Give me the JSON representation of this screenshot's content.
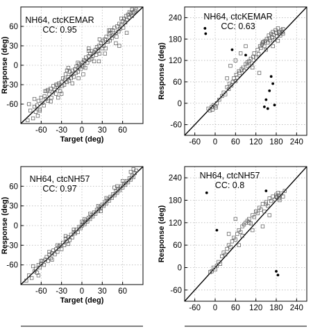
{
  "chart_data": [
    {
      "type": "scatter",
      "panel": "top-left",
      "annotation_line1": "NH64, ctcKEMAR",
      "annotation_line2": "CC: 0.95",
      "xlabel": "Target (deg)",
      "ylabel": "Response (deg)",
      "xlim": [
        -90,
        90
      ],
      "ylim": [
        -90,
        90
      ],
      "xticks": [
        -60,
        -30,
        0,
        30,
        60
      ],
      "yticks": [
        -60,
        -30,
        0,
        30,
        60
      ],
      "x": [
        -80,
        -76,
        -72,
        -70,
        -68,
        -66,
        -64,
        -62,
        -60,
        -58,
        -56,
        -55,
        -53,
        -52,
        -50,
        -48,
        -46,
        -45,
        -43,
        -42,
        -40,
        -38,
        -36,
        -35,
        -34,
        -32,
        -30,
        -29,
        -28,
        -26,
        -25,
        -24,
        -22,
        -20,
        -19,
        -18,
        -16,
        -15,
        -14,
        -12,
        -10,
        -9,
        -8,
        -6,
        -5,
        -4,
        -2,
        0,
        1,
        2,
        3,
        4,
        5,
        6,
        8,
        10,
        11,
        12,
        14,
        15,
        16,
        18,
        20,
        21,
        22,
        24,
        25,
        26,
        28,
        30,
        31,
        32,
        34,
        35,
        36,
        38,
        40,
        41,
        42,
        44,
        45,
        46,
        48,
        50,
        51,
        52,
        54,
        55,
        56,
        58,
        60,
        61,
        62,
        64,
        65,
        66,
        68,
        70,
        72,
        74,
        76,
        78,
        80,
        -78,
        -70,
        -62,
        -54,
        -46,
        -38,
        -30,
        -22,
        -14,
        -6,
        2,
        10,
        18,
        26,
        34,
        42,
        50,
        58,
        66,
        74,
        -65,
        -50,
        -35,
        -20,
        -5,
        10,
        25,
        40,
        55,
        70
      ],
      "y": [
        -85,
        -70,
        -82,
        -64,
        -72,
        -62,
        -55,
        -68,
        -50,
        -58,
        -62,
        -48,
        -52,
        -40,
        -55,
        -45,
        -36,
        -50,
        -42,
        -32,
        -38,
        -44,
        -30,
        -35,
        -28,
        -40,
        -26,
        -32,
        -20,
        -30,
        -22,
        -14,
        -26,
        -18,
        -24,
        -10,
        -20,
        -14,
        -8,
        -18,
        -6,
        -12,
        -2,
        -10,
        -4,
        2,
        -6,
        0,
        4,
        -2,
        8,
        6,
        -4,
        12,
        4,
        14,
        8,
        18,
        10,
        22,
        14,
        20,
        24,
        16,
        28,
        22,
        30,
        18,
        34,
        26,
        38,
        30,
        40,
        26,
        44,
        36,
        48,
        38,
        50,
        42,
        54,
        46,
        58,
        50,
        44,
        60,
        52,
        64,
        56,
        62,
        68,
        58,
        72,
        66,
        76,
        70,
        78,
        74,
        80,
        76,
        82,
        84,
        86,
        -60,
        -52,
        -70,
        -40,
        -56,
        -30,
        -44,
        -8,
        -28,
        4,
        -14,
        22,
        6,
        40,
        18,
        54,
        34,
        72,
        50,
        86,
        -78,
        -38,
        -50,
        -4,
        -20,
        26,
        6,
        54,
        30,
        82
      ],
      "outliers_x": [],
      "outliers_y": []
    },
    {
      "type": "scatter",
      "panel": "top-right",
      "annotation_line1": "NH64, ctcKEMAR",
      "annotation_line2": "CC: 0.63",
      "xlabel": "",
      "ylabel": "Response (deg)",
      "xlim": [
        -90,
        270
      ],
      "ylim": [
        -90,
        270
      ],
      "xticks": [
        -60,
        0,
        60,
        120,
        180,
        240
      ],
      "yticks": [
        -60,
        0,
        60,
        120,
        180,
        240
      ],
      "x": [
        -20,
        -15,
        -10,
        -5,
        0,
        5,
        -8,
        2,
        12,
        20,
        25,
        30,
        35,
        40,
        42,
        48,
        52,
        55,
        60,
        62,
        65,
        70,
        72,
        78,
        82,
        85,
        90,
        95,
        100,
        105,
        108,
        112,
        115,
        120,
        125,
        128,
        132,
        135,
        138,
        142,
        145,
        148,
        152,
        155,
        158,
        160,
        162,
        165,
        168,
        170,
        172,
        175,
        178,
        180,
        182,
        185,
        188,
        190,
        192,
        195,
        198,
        200,
        35,
        45,
        75,
        95,
        110,
        130,
        150,
        170,
        185,
        200,
        60,
        90,
        140
      ],
      "y": [
        -15,
        -20,
        -10,
        -5,
        -8,
        0,
        -18,
        -12,
        10,
        20,
        30,
        25,
        45,
        40,
        55,
        50,
        60,
        70,
        62,
        80,
        72,
        90,
        85,
        95,
        100,
        92,
        110,
        105,
        118,
        125,
        112,
        130,
        140,
        128,
        150,
        138,
        160,
        155,
        165,
        172,
        160,
        175,
        180,
        170,
        190,
        182,
        176,
        195,
        185,
        200,
        192,
        178,
        205,
        198,
        188,
        210,
        195,
        200,
        190,
        205,
        200,
        208,
        70,
        105,
        140,
        115,
        100,
        85,
        150,
        160,
        175,
        195,
        120,
        160,
        170
      ],
      "outliers_x": [
        -30,
        -28,
        50,
        90,
        145,
        150,
        155,
        165,
        170,
        175,
        160
      ],
      "outliers_y": [
        210,
        195,
        150,
        135,
        -10,
        10,
        -15,
        75,
        55,
        -5,
        35
      ]
    },
    {
      "type": "scatter",
      "panel": "middle-left",
      "annotation_line1": "NH64, ctcNH57",
      "annotation_line2": "CC: 0.97",
      "xlabel": "Target (deg)",
      "ylabel": "Response (deg)",
      "xlim": [
        -90,
        90
      ],
      "ylim": [
        -90,
        90
      ],
      "xticks": [
        -60,
        -30,
        0,
        30,
        60
      ],
      "yticks": [
        -60,
        -30,
        0,
        30,
        60
      ],
      "x": [
        -82,
        -78,
        -74,
        -70,
        -68,
        -66,
        -64,
        -62,
        -60,
        -58,
        -56,
        -54,
        -52,
        -50,
        -48,
        -46,
        -44,
        -42,
        -40,
        -38,
        -36,
        -34,
        -32,
        -30,
        -28,
        -26,
        -24,
        -22,
        -20,
        -18,
        -16,
        -14,
        -12,
        -10,
        -8,
        -6,
        -4,
        -2,
        0,
        2,
        4,
        6,
        8,
        10,
        12,
        14,
        16,
        18,
        20,
        22,
        24,
        26,
        28,
        30,
        32,
        34,
        36,
        38,
        40,
        42,
        44,
        46,
        48,
        50,
        52,
        54,
        56,
        58,
        60,
        62,
        64,
        66,
        68,
        70,
        72,
        74,
        76,
        78,
        80,
        -72,
        -60,
        -48,
        -36,
        -24,
        -12,
        0,
        12,
        24,
        36,
        48,
        60,
        72,
        -64,
        -44,
        -20,
        4,
        28,
        52,
        76
      ],
      "y": [
        -84,
        -76,
        -80,
        -70,
        -66,
        -72,
        -60,
        -64,
        -58,
        -54,
        -60,
        -52,
        -48,
        -54,
        -44,
        -50,
        -42,
        -38,
        -44,
        -36,
        -40,
        -32,
        -30,
        -36,
        -26,
        -30,
        -20,
        -24,
        -18,
        -22,
        -14,
        -18,
        -10,
        -12,
        -6,
        -10,
        -2,
        -4,
        0,
        4,
        2,
        8,
        6,
        12,
        10,
        16,
        14,
        20,
        18,
        24,
        22,
        28,
        26,
        32,
        30,
        36,
        34,
        40,
        38,
        44,
        42,
        48,
        46,
        52,
        50,
        56,
        54,
        60,
        58,
        64,
        62,
        68,
        66,
        72,
        70,
        76,
        74,
        80,
        84,
        -62,
        -54,
        -40,
        -30,
        -16,
        -6,
        6,
        18,
        30,
        42,
        58,
        68,
        82,
        -76,
        -52,
        -28,
        10,
        22,
        60,
        86
      ],
      "outliers_x": [],
      "outliers_y": []
    },
    {
      "type": "scatter",
      "panel": "middle-right",
      "annotation_line1": "NH64, ctcNH57",
      "annotation_line2": "CC: 0.8",
      "xlabel": "",
      "ylabel": "Response (deg)",
      "xlim": [
        -90,
        270
      ],
      "ylim": [
        -90,
        270
      ],
      "xticks": [
        -60,
        0,
        60,
        120,
        180,
        240
      ],
      "yticks": [
        -60,
        0,
        60,
        120,
        180,
        240
      ],
      "x": [
        -10,
        -5,
        0,
        5,
        -15,
        10,
        15,
        20,
        25,
        30,
        35,
        40,
        45,
        50,
        55,
        60,
        65,
        70,
        75,
        80,
        85,
        90,
        95,
        100,
        105,
        110,
        115,
        120,
        125,
        130,
        135,
        140,
        145,
        150,
        155,
        160,
        165,
        170,
        175,
        180,
        182,
        185,
        188,
        190,
        195,
        200,
        205,
        40,
        60,
        80,
        100,
        120,
        140,
        160,
        180,
        70,
        110,
        150,
        190
      ],
      "y": [
        -10,
        0,
        -5,
        5,
        -12,
        15,
        10,
        30,
        40,
        35,
        50,
        60,
        55,
        70,
        80,
        75,
        90,
        100,
        95,
        110,
        115,
        120,
        125,
        130,
        118,
        140,
        135,
        150,
        145,
        160,
        155,
        170,
        150,
        175,
        165,
        185,
        178,
        190,
        182,
        195,
        188,
        200,
        185,
        192,
        198,
        190,
        205,
        90,
        130,
        85,
        120,
        150,
        110,
        140,
        190,
        60,
        100,
        170,
        180
      ],
      "outliers_x": [
        -25,
        5,
        150,
        180,
        185
      ],
      "outliers_y": [
        200,
        100,
        205,
        -10,
        -20
      ]
    }
  ]
}
